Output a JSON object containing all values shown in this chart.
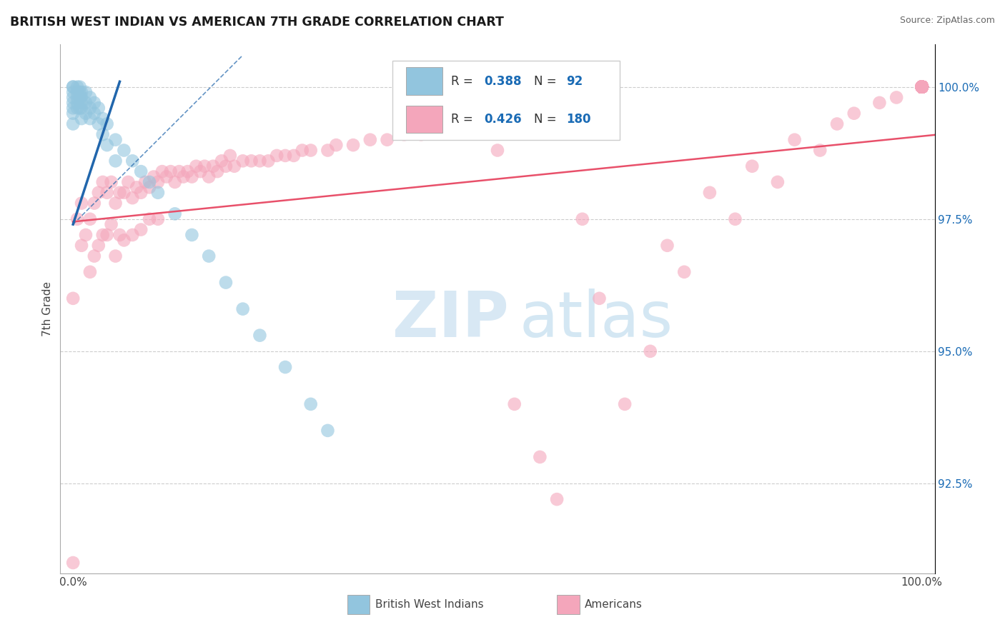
{
  "title": "BRITISH WEST INDIAN VS AMERICAN 7TH GRADE CORRELATION CHART",
  "source": "Source: ZipAtlas.com",
  "ylabel": "7th Grade",
  "legend_blue_label": "British West Indians",
  "legend_pink_label": "Americans",
  "watermark_zip": "ZIP",
  "watermark_atlas": "atlas",
  "blue_color": "#92c5de",
  "pink_color": "#f4a6bb",
  "blue_line_color": "#2166ac",
  "pink_line_color": "#e8506a",
  "r_color": "#1a6bb5",
  "text_color": "#444444",
  "ytick_labels": [
    "92.5%",
    "95.0%",
    "97.5%",
    "100.0%"
  ],
  "ytick_values": [
    0.925,
    0.95,
    0.975,
    1.0
  ],
  "ymin": 0.908,
  "ymax": 1.008,
  "xmin": -0.015,
  "xmax": 1.015,
  "blue_r": "0.388",
  "blue_n": "92",
  "pink_r": "0.426",
  "pink_n": "180",
  "blue_scatter_x": [
    0.0,
    0.0,
    0.0,
    0.0,
    0.0,
    0.0,
    0.0,
    0.0,
    0.005,
    0.005,
    0.005,
    0.005,
    0.005,
    0.008,
    0.008,
    0.008,
    0.008,
    0.01,
    0.01,
    0.01,
    0.01,
    0.01,
    0.015,
    0.015,
    0.015,
    0.02,
    0.02,
    0.02,
    0.025,
    0.025,
    0.03,
    0.03,
    0.035,
    0.035,
    0.04,
    0.04,
    0.05,
    0.05,
    0.06,
    0.07,
    0.08,
    0.09,
    0.1,
    0.12,
    0.14,
    0.16,
    0.18,
    0.2,
    0.22,
    0.25,
    0.28,
    0.3
  ],
  "blue_scatter_y": [
    1.0,
    1.0,
    0.999,
    0.998,
    0.997,
    0.996,
    0.995,
    0.993,
    1.0,
    0.999,
    0.998,
    0.997,
    0.996,
    1.0,
    0.999,
    0.998,
    0.996,
    0.999,
    0.998,
    0.997,
    0.996,
    0.994,
    0.999,
    0.997,
    0.995,
    0.998,
    0.996,
    0.994,
    0.997,
    0.995,
    0.996,
    0.993,
    0.994,
    0.991,
    0.993,
    0.989,
    0.99,
    0.986,
    0.988,
    0.986,
    0.984,
    0.982,
    0.98,
    0.976,
    0.972,
    0.968,
    0.963,
    0.958,
    0.953,
    0.947,
    0.94,
    0.935
  ],
  "pink_scatter_x": [
    0.0,
    0.0,
    0.005,
    0.01,
    0.01,
    0.015,
    0.02,
    0.02,
    0.025,
    0.025,
    0.03,
    0.03,
    0.035,
    0.035,
    0.04,
    0.04,
    0.045,
    0.045,
    0.05,
    0.05,
    0.055,
    0.055,
    0.06,
    0.06,
    0.065,
    0.07,
    0.07,
    0.075,
    0.08,
    0.08,
    0.085,
    0.09,
    0.09,
    0.095,
    0.1,
    0.1,
    0.105,
    0.11,
    0.115,
    0.12,
    0.125,
    0.13,
    0.135,
    0.14,
    0.145,
    0.15,
    0.155,
    0.16,
    0.165,
    0.17,
    0.175,
    0.18,
    0.185,
    0.19,
    0.2,
    0.21,
    0.22,
    0.23,
    0.24,
    0.25,
    0.26,
    0.27,
    0.28,
    0.3,
    0.31,
    0.33,
    0.35,
    0.37,
    0.39,
    0.41,
    0.43,
    0.45,
    0.47,
    0.5,
    0.52,
    0.55,
    0.57,
    0.6,
    0.62,
    0.65,
    0.68,
    0.7,
    0.72,
    0.75,
    0.78,
    0.8,
    0.83,
    0.85,
    0.88,
    0.9,
    0.92,
    0.95,
    0.97,
    1.0,
    1.0,
    1.0,
    1.0,
    1.0,
    1.0,
    1.0,
    1.0,
    1.0,
    1.0,
    1.0,
    1.0,
    1.0,
    1.0,
    1.0,
    1.0,
    1.0,
    1.0,
    1.0,
    1.0,
    1.0,
    1.0,
    1.0,
    1.0,
    1.0,
    1.0,
    1.0,
    1.0,
    1.0,
    1.0,
    1.0,
    1.0,
    1.0,
    1.0,
    1.0,
    1.0,
    1.0,
    1.0,
    1.0,
    1.0,
    1.0,
    1.0,
    1.0,
    1.0,
    1.0,
    1.0,
    1.0,
    1.0,
    1.0,
    1.0,
    1.0,
    1.0,
    1.0,
    1.0,
    1.0,
    1.0,
    1.0,
    1.0,
    1.0,
    1.0,
    1.0,
    1.0,
    1.0,
    1.0,
    1.0,
    1.0,
    1.0,
    1.0,
    1.0,
    1.0,
    1.0,
    1.0,
    1.0,
    1.0,
    1.0,
    1.0,
    1.0,
    1.0,
    1.0,
    1.0,
    1.0,
    1.0,
    1.0,
    1.0,
    1.0,
    1.0,
    1.0,
    1.0,
    1.0,
    1.0
  ],
  "pink_scatter_y": [
    0.91,
    0.96,
    0.975,
    0.97,
    0.978,
    0.972,
    0.975,
    0.965,
    0.978,
    0.968,
    0.98,
    0.97,
    0.982,
    0.972,
    0.98,
    0.972,
    0.982,
    0.974,
    0.978,
    0.968,
    0.98,
    0.972,
    0.98,
    0.971,
    0.982,
    0.979,
    0.972,
    0.981,
    0.98,
    0.973,
    0.982,
    0.981,
    0.975,
    0.983,
    0.982,
    0.975,
    0.984,
    0.983,
    0.984,
    0.982,
    0.984,
    0.983,
    0.984,
    0.983,
    0.985,
    0.984,
    0.985,
    0.983,
    0.985,
    0.984,
    0.986,
    0.985,
    0.987,
    0.985,
    0.986,
    0.986,
    0.986,
    0.986,
    0.987,
    0.987,
    0.987,
    0.988,
    0.988,
    0.988,
    0.989,
    0.989,
    0.99,
    0.99,
    0.991,
    0.991,
    0.992,
    0.992,
    0.993,
    0.988,
    0.94,
    0.93,
    0.922,
    0.975,
    0.96,
    0.94,
    0.95,
    0.97,
    0.965,
    0.98,
    0.975,
    0.985,
    0.982,
    0.99,
    0.988,
    0.993,
    0.995,
    0.997,
    0.998,
    1.0,
    1.0,
    1.0,
    1.0,
    1.0,
    1.0,
    1.0,
    1.0,
    1.0,
    1.0,
    1.0,
    1.0,
    1.0,
    1.0,
    1.0,
    1.0,
    1.0,
    1.0,
    1.0,
    1.0,
    1.0,
    1.0,
    1.0,
    1.0,
    1.0,
    1.0,
    1.0,
    1.0,
    1.0,
    1.0,
    1.0,
    1.0,
    1.0,
    1.0,
    1.0,
    1.0,
    1.0,
    1.0,
    1.0,
    1.0,
    1.0,
    1.0,
    1.0,
    1.0,
    1.0,
    1.0,
    1.0,
    1.0,
    1.0,
    1.0,
    1.0,
    1.0,
    1.0,
    1.0,
    1.0,
    1.0,
    1.0,
    1.0,
    1.0,
    1.0,
    1.0,
    1.0,
    1.0,
    1.0,
    1.0,
    1.0,
    1.0,
    1.0,
    1.0,
    1.0,
    1.0,
    1.0,
    1.0,
    1.0,
    1.0,
    1.0,
    1.0,
    1.0,
    1.0,
    1.0,
    1.0,
    1.0,
    1.0,
    1.0,
    1.0,
    1.0,
    1.0,
    1.0,
    1.0,
    1.0
  ]
}
